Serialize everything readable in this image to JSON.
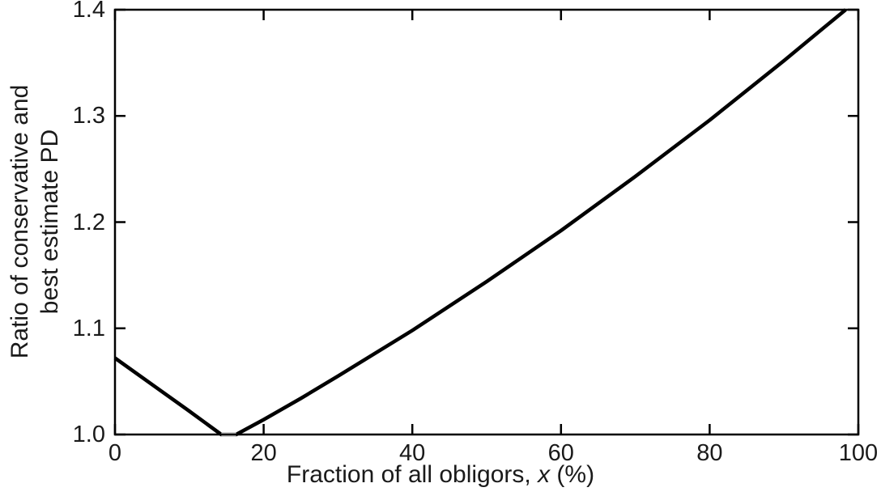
{
  "figure": {
    "background": "#ffffff",
    "text_color": "#1a1a1a",
    "axis_color": "#000000"
  },
  "chart_data": {
    "type": "line",
    "title": "",
    "xlabel_parts": {
      "prefix": "Fraction of all obligors, ",
      "italic_var": "x",
      "suffix": " (%)"
    },
    "ylabel_line1": "Ratio of conservative and",
    "ylabel_line2": "best estimate PD",
    "xlim": [
      0,
      100
    ],
    "ylim": [
      1.0,
      1.4
    ],
    "grid": false,
    "legend": "none",
    "box": true,
    "tick_direction": "in",
    "x_ticks": {
      "values": [
        0,
        20,
        40,
        60,
        80,
        100
      ],
      "labels": [
        "0",
        "20",
        "40",
        "60",
        "80",
        "100"
      ]
    },
    "y_ticks": {
      "values": [
        1.0,
        1.1,
        1.2,
        1.3,
        1.4
      ],
      "labels": [
        "1.0",
        "1.1",
        "1.2",
        "1.3",
        "1.4"
      ]
    },
    "series": [
      {
        "name": "pd-ratio-curve",
        "color": "#000000",
        "width": 4.5,
        "points": [
          [
            0,
            1.072
          ],
          [
            5,
            1.047
          ],
          [
            10,
            1.022
          ],
          [
            14.3,
            1.0
          ],
          [
            16.3,
            1.0
          ],
          [
            20,
            1.014
          ],
          [
            25,
            1.034
          ],
          [
            30,
            1.055
          ],
          [
            40,
            1.098
          ],
          [
            50,
            1.144
          ],
          [
            60,
            1.192
          ],
          [
            70,
            1.243
          ],
          [
            80,
            1.296
          ],
          [
            90,
            1.352
          ],
          [
            95,
            1.381
          ],
          [
            98.3,
            1.4
          ]
        ]
      },
      {
        "name": "minimum-flat-segment",
        "color": "#c8c8c8",
        "width": 4.5,
        "points": [
          [
            14.3,
            1.0
          ],
          [
            16.3,
            1.0
          ]
        ]
      }
    ]
  }
}
